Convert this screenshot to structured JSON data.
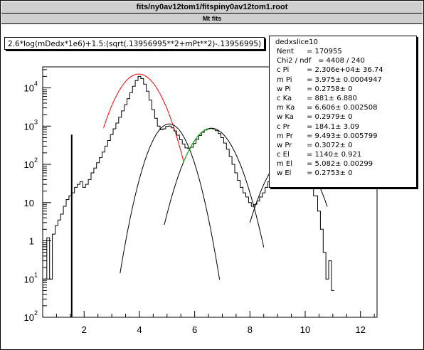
{
  "window": {
    "title": "fits/ny0av12tom1/fitspiny0av12tom1.root",
    "subtitle": "Mt fits"
  },
  "formula": "2.6*log(mDedx*1e6)+1.5:(sqrt(.13956995**2+mPt**2)-.13956995)",
  "stats": {
    "name": "dedxslice10",
    "rows": [
      {
        "label": "Nent",
        "value": "= 170955"
      },
      {
        "label": "Chi2 / ndf",
        "value": "=   4408 / 240"
      },
      {
        "label": "c Pi",
        "value": "= 2.306e+04± 36.74"
      },
      {
        "label": "m Pi",
        "value": "= 3.975± 0.0004947"
      },
      {
        "label": "w Pi",
        "value": "= 0.2758±      0"
      },
      {
        "label": "c Ka",
        "value": "=    881± 6.880"
      },
      {
        "label": "m Ka",
        "value": "= 6.606± 0.002508"
      },
      {
        "label": "w Ka",
        "value": "= 0.2979±      0"
      },
      {
        "label": "c Pr",
        "value": "= 184.1±  3.09"
      },
      {
        "label": "m Pr",
        "value": "= 9.493± 0.005799"
      },
      {
        "label": "w Pr",
        "value": "= 0.3072±      0"
      },
      {
        "label": "c El",
        "value": "=  1140± 0.921"
      },
      {
        "label": "m El",
        "value": "= 5.082± 0.00299"
      },
      {
        "label": "w El",
        "value": "= 0.2753±      0"
      }
    ]
  },
  "chart_data": {
    "type": "line",
    "title": "",
    "xlabel": "",
    "ylabel": "",
    "xlim": [
      0.5,
      12.6
    ],
    "ylim_log10": [
      -2,
      4.55
    ],
    "log_y": true,
    "x_ticks": [
      2,
      4,
      6,
      8,
      10,
      12
    ],
    "y_ticks": [
      {
        "exp": -2,
        "label": "10",
        "sup": "2"
      },
      {
        "exp": -1,
        "label": "10",
        "sup": "1"
      },
      {
        "exp": 0,
        "label": "1",
        "sup": ""
      },
      {
        "exp": 1,
        "label": "10",
        "sup": ""
      },
      {
        "exp": 2,
        "label": "10",
        "sup": "2"
      },
      {
        "exp": 3,
        "label": "10",
        "sup": "3"
      },
      {
        "exp": 4,
        "label": "10",
        "sup": "4"
      }
    ],
    "colors": {
      "data": "#000000",
      "pion": "#ff0000",
      "kaon": "#000000",
      "electron": "#000000",
      "proton": "#00cc00",
      "total": "#000000"
    },
    "spike": {
      "x": 1.55,
      "y": 600
    },
    "series": [
      {
        "key": "data",
        "points": [
          [
            0.6,
            0.1
          ],
          [
            0.7,
            1.2
          ],
          [
            0.8,
            0.1
          ],
          [
            0.9,
            1.5
          ],
          [
            1.0,
            2.5
          ],
          [
            1.1,
            3.5
          ],
          [
            1.2,
            5
          ],
          [
            1.3,
            8
          ],
          [
            1.4,
            12
          ],
          [
            1.5,
            15
          ],
          [
            1.6,
            18
          ],
          [
            1.7,
            25
          ],
          [
            1.8,
            30
          ],
          [
            1.9,
            35
          ],
          [
            2.0,
            25
          ],
          [
            2.1,
            30
          ],
          [
            2.2,
            40
          ],
          [
            2.3,
            60
          ],
          [
            2.4,
            80
          ],
          [
            2.5,
            110
          ],
          [
            2.6,
            150
          ],
          [
            2.7,
            210
          ],
          [
            2.8,
            300
          ],
          [
            2.9,
            420
          ],
          [
            3.0,
            600
          ],
          [
            3.1,
            850
          ],
          [
            3.2,
            1200
          ],
          [
            3.3,
            1700
          ],
          [
            3.4,
            2500
          ],
          [
            3.5,
            3600
          ],
          [
            3.6,
            5200
          ],
          [
            3.7,
            7500
          ],
          [
            3.8,
            11000
          ],
          [
            3.9,
            15500
          ],
          [
            4.0,
            20000
          ],
          [
            4.1,
            17500
          ],
          [
            4.2,
            12500
          ],
          [
            4.3,
            8200
          ],
          [
            4.4,
            4800
          ],
          [
            4.5,
            2700
          ],
          [
            4.6,
            1600
          ],
          [
            4.7,
            1000
          ],
          [
            4.8,
            800
          ],
          [
            4.9,
            850
          ],
          [
            5.0,
            980
          ],
          [
            5.1,
            1000
          ],
          [
            5.2,
            900
          ],
          [
            5.3,
            750
          ],
          [
            5.4,
            580
          ],
          [
            5.5,
            440
          ],
          [
            5.6,
            340
          ],
          [
            5.7,
            270
          ],
          [
            5.8,
            260
          ],
          [
            5.9,
            280
          ],
          [
            6.0,
            350
          ],
          [
            6.1,
            450
          ],
          [
            6.2,
            570
          ],
          [
            6.3,
            690
          ],
          [
            6.4,
            790
          ],
          [
            6.5,
            850
          ],
          [
            6.6,
            870
          ],
          [
            6.7,
            840
          ],
          [
            6.8,
            760
          ],
          [
            6.9,
            640
          ],
          [
            7.0,
            500
          ],
          [
            7.1,
            360
          ],
          [
            7.2,
            250
          ],
          [
            7.3,
            160
          ],
          [
            7.4,
            100
          ],
          [
            7.5,
            60
          ],
          [
            7.6,
            38
          ],
          [
            7.7,
            25
          ],
          [
            7.8,
            18
          ],
          [
            7.9,
            14
          ],
          [
            8.0,
            10
          ],
          [
            8.1,
            8
          ],
          [
            8.2,
            9
          ],
          [
            8.3,
            11
          ],
          [
            8.4,
            14
          ],
          [
            8.5,
            18
          ],
          [
            8.6,
            25
          ],
          [
            8.7,
            35
          ],
          [
            8.8,
            50
          ],
          [
            8.9,
            70
          ],
          [
            9.0,
            90
          ],
          [
            9.2,
            130
          ],
          [
            9.4,
            170
          ],
          [
            9.5,
            180
          ],
          [
            9.6,
            175
          ],
          [
            9.8,
            140
          ],
          [
            10.0,
            90
          ],
          [
            10.2,
            45
          ],
          [
            10.4,
            15
          ],
          [
            10.5,
            6
          ],
          [
            10.6,
            2
          ],
          [
            10.7,
            0.5
          ],
          [
            10.8,
            0.1
          ],
          [
            10.9,
            0.3
          ],
          [
            11.0,
            0.05
          ]
        ]
      },
      {
        "key": "pion",
        "curve": {
          "c": 23060,
          "m": 3.975,
          "w": 0.5,
          "xmin": 2.7,
          "xmax": 5.6
        }
      },
      {
        "key": "electron",
        "curve": {
          "c": 1140,
          "m": 5.082,
          "w": 0.42,
          "xmin": 3.3,
          "xmax": 6.9
        }
      },
      {
        "key": "kaon",
        "curve": {
          "c": 881,
          "m": 6.606,
          "w": 0.5,
          "xmin": 4.9,
          "xmax": 8.5
        }
      },
      {
        "key": "proton_green",
        "curve": {
          "c": 881,
          "m": 6.606,
          "w": 0.5,
          "xmin": 5.6,
          "xmax": 6.5
        }
      },
      {
        "key": "proton",
        "curve": {
          "c": 184.1,
          "m": 9.493,
          "w": 0.52,
          "xmin": 8.0,
          "xmax": 10.8
        }
      }
    ]
  }
}
